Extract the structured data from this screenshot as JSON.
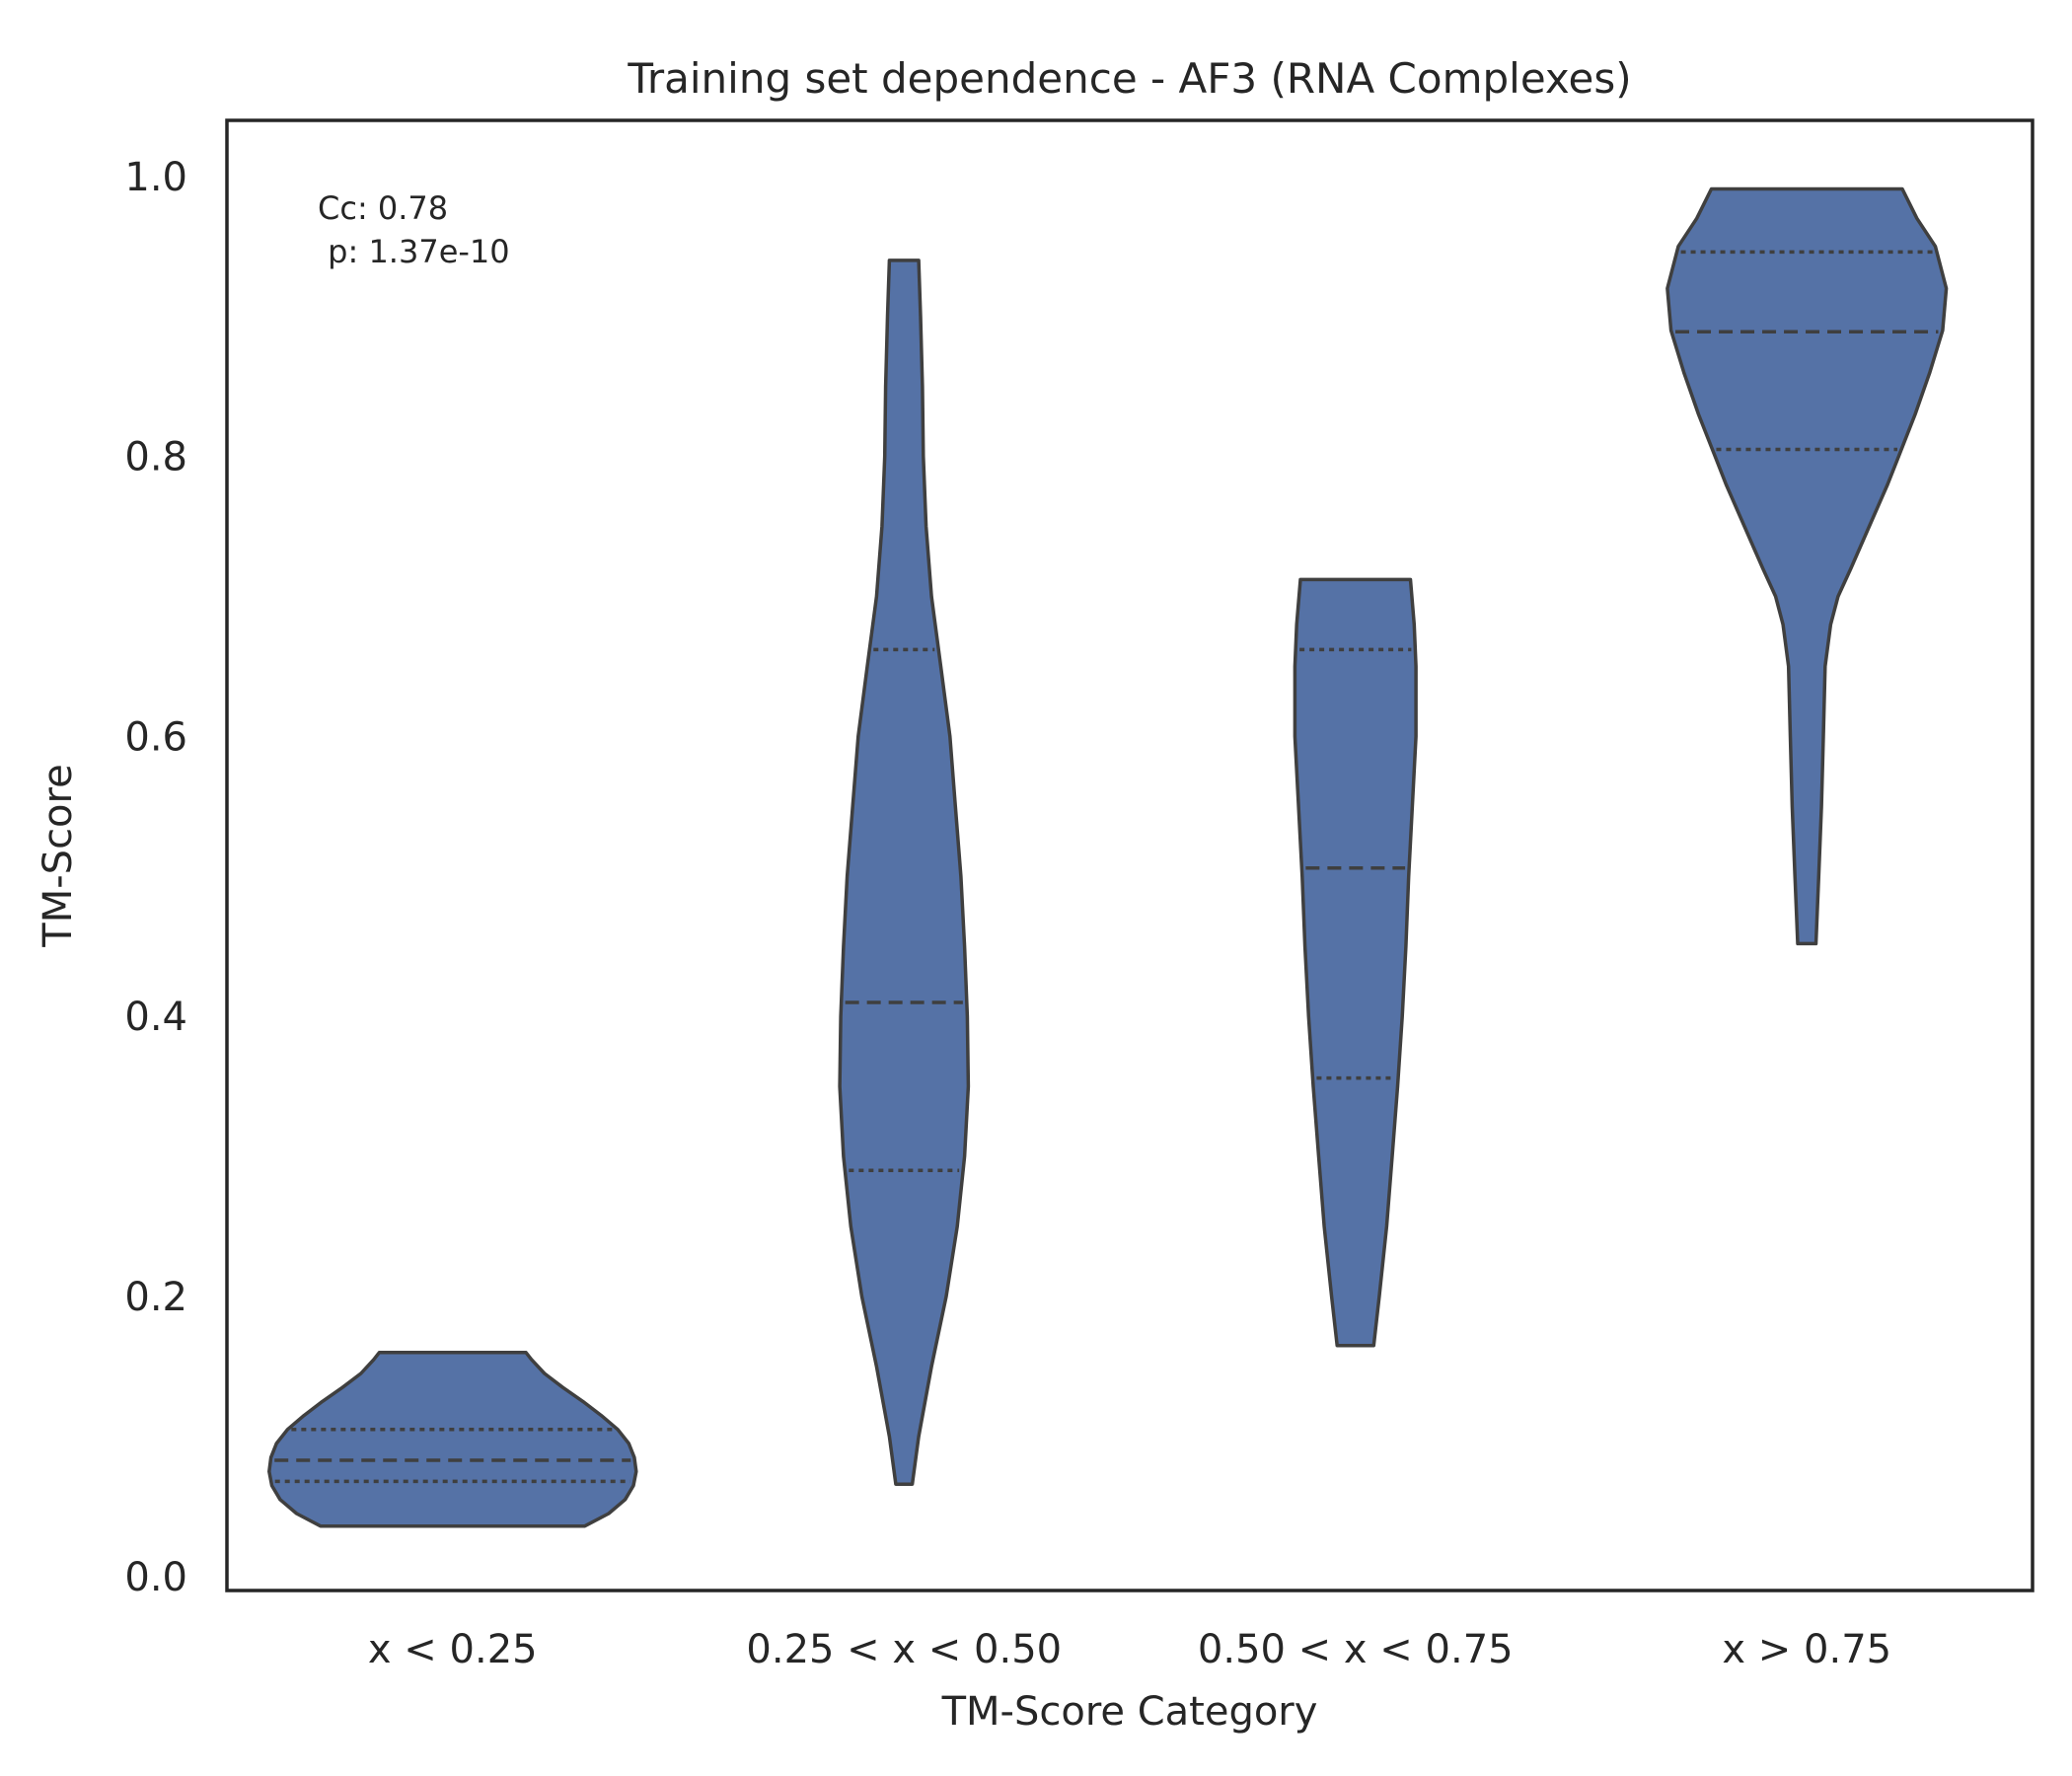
{
  "chart_data": {
    "type": "violin",
    "title": "Training set dependence - AF3 (RNA Complexes)",
    "xlabel": "TM-Score Category",
    "ylabel": "TM-Score",
    "ylim": [
      -0.01,
      1.04
    ],
    "yticks": [
      0.0,
      0.2,
      0.4,
      0.6,
      0.8,
      1.0
    ],
    "ytick_labels": [
      "0.0",
      "0.2",
      "0.4",
      "0.6",
      "0.8",
      "1.0"
    ],
    "categories": [
      "x < 0.25",
      "0.25 < x < 0.50",
      "0.50 < x < 0.75",
      "x > 0.75"
    ],
    "annotation": [
      "Cc: 0.78",
      " p: 1.37e-10"
    ],
    "grid": false,
    "colors": {
      "fill": "#5572a6",
      "edge": "#3f3f3f"
    },
    "violins": [
      {
        "category": "x < 0.25",
        "min": 0.036,
        "max": 0.16,
        "quartiles": {
          "q1": 0.068,
          "median": 0.083,
          "q3": 0.105
        },
        "profile": [
          [
            0.036,
            0.72
          ],
          [
            0.045,
            0.85
          ],
          [
            0.055,
            0.94
          ],
          [
            0.065,
            0.985
          ],
          [
            0.075,
            1.0
          ],
          [
            0.085,
            0.99
          ],
          [
            0.095,
            0.96
          ],
          [
            0.105,
            0.9
          ],
          [
            0.115,
            0.81
          ],
          [
            0.125,
            0.71
          ],
          [
            0.135,
            0.6
          ],
          [
            0.145,
            0.5
          ],
          [
            0.155,
            0.43
          ],
          [
            0.16,
            0.4
          ]
        ]
      },
      {
        "category": "0.25 < x < 0.50",
        "min": 0.066,
        "max": 0.94,
        "quartiles": {
          "q1": 0.29,
          "median": 0.41,
          "q3": 0.662
        },
        "profile": [
          [
            0.066,
            0.045
          ],
          [
            0.1,
            0.08
          ],
          [
            0.15,
            0.15
          ],
          [
            0.2,
            0.23
          ],
          [
            0.25,
            0.29
          ],
          [
            0.3,
            0.33
          ],
          [
            0.35,
            0.35
          ],
          [
            0.4,
            0.345
          ],
          [
            0.45,
            0.33
          ],
          [
            0.5,
            0.31
          ],
          [
            0.55,
            0.28
          ],
          [
            0.6,
            0.25
          ],
          [
            0.65,
            0.2
          ],
          [
            0.7,
            0.15
          ],
          [
            0.75,
            0.12
          ],
          [
            0.8,
            0.105
          ],
          [
            0.85,
            0.1
          ],
          [
            0.9,
            0.09
          ],
          [
            0.94,
            0.08
          ]
        ]
      },
      {
        "category": "0.50 < x < 0.75",
        "min": 0.165,
        "max": 0.712,
        "quartiles": {
          "q1": 0.356,
          "median": 0.506,
          "q3": 0.662
        },
        "profile": [
          [
            0.165,
            0.1
          ],
          [
            0.2,
            0.13
          ],
          [
            0.25,
            0.17
          ],
          [
            0.3,
            0.2
          ],
          [
            0.35,
            0.23
          ],
          [
            0.4,
            0.255
          ],
          [
            0.45,
            0.275
          ],
          [
            0.5,
            0.29
          ],
          [
            0.55,
            0.31
          ],
          [
            0.6,
            0.33
          ],
          [
            0.65,
            0.33
          ],
          [
            0.68,
            0.32
          ],
          [
            0.712,
            0.3
          ]
        ]
      },
      {
        "category": "x > 0.75",
        "min": 0.452,
        "max": 0.991,
        "quartiles": {
          "q1": 0.805,
          "median": 0.889,
          "q3": 0.946
        },
        "profile": [
          [
            0.452,
            0.05
          ],
          [
            0.5,
            0.065
          ],
          [
            0.55,
            0.08
          ],
          [
            0.6,
            0.09
          ],
          [
            0.65,
            0.1
          ],
          [
            0.68,
            0.13
          ],
          [
            0.7,
            0.17
          ],
          [
            0.72,
            0.24
          ],
          [
            0.75,
            0.34
          ],
          [
            0.78,
            0.44
          ],
          [
            0.8,
            0.5
          ],
          [
            0.83,
            0.59
          ],
          [
            0.86,
            0.67
          ],
          [
            0.89,
            0.74
          ],
          [
            0.92,
            0.76
          ],
          [
            0.95,
            0.7
          ],
          [
            0.97,
            0.6
          ],
          [
            0.991,
            0.52
          ]
        ]
      }
    ]
  }
}
